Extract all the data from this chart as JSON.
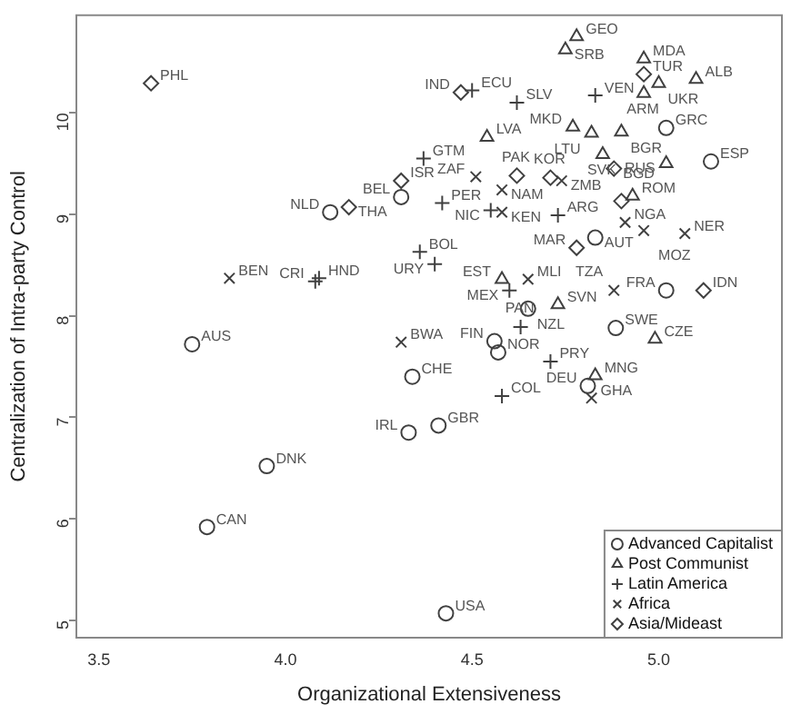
{
  "chart_data": {
    "type": "scatter",
    "xlabel": "Organizational Extensiveness",
    "ylabel": "Centralization of Intra-party Control",
    "xlim": [
      3.44,
      5.33
    ],
    "ylim": [
      4.83,
      10.96
    ],
    "xticks": [
      {
        "value": 3.5,
        "label": "3.5"
      },
      {
        "value": 4,
        "label": "4.0"
      },
      {
        "value": 4.5,
        "label": "4.5"
      },
      {
        "value": 5,
        "label": "5.0"
      }
    ],
    "yticks": [
      5,
      6,
      7,
      8,
      9,
      10
    ],
    "grid": false,
    "legend": "bottom right",
    "series": [
      {
        "name": "Advanced Capitalist",
        "marker": "circle",
        "color": "#404040",
        "x": [
          3.75,
          3.79,
          3.95,
          4.34,
          4.33,
          4.41,
          4.43,
          4.57,
          4.56,
          4.885,
          4.65,
          5.02,
          4.83,
          5.02,
          5.14,
          4.31,
          4.12,
          4.81
        ],
        "values": [
          7.72,
          5.92,
          6.52,
          7.4,
          6.85,
          6.92,
          5.07,
          7.64,
          7.75,
          7.88,
          8.07,
          8.25,
          8.77,
          9.85,
          9.52,
          9.17,
          9.02,
          7.31
        ],
        "value_labels": [
          "AUS",
          "CAN",
          "DNK",
          "CHE",
          "IRL",
          "GBR",
          "USA",
          "NOR",
          "FIN",
          "SWE",
          "NZL",
          "FRA",
          "AUT",
          "GRC",
          "ESP",
          "BEL",
          "NLD",
          "DEU"
        ]
      },
      {
        "name": "Post Communist",
        "marker": "triangle",
        "color": "#404040",
        "x": [
          4.78,
          4.75,
          4.96,
          5.0,
          5.1,
          4.96,
          4.77,
          4.82,
          4.9,
          4.54,
          4.85,
          5.02,
          4.93,
          4.58,
          4.73,
          4.99,
          4.83
        ],
        "values": [
          10.75,
          10.62,
          10.53,
          10.29,
          10.33,
          10.19,
          9.86,
          9.8,
          9.81,
          9.76,
          9.59,
          9.5,
          9.18,
          8.36,
          8.11,
          7.77,
          7.41
        ],
        "value_labels": [
          "GEO",
          "SRB",
          "MDA",
          "UKR",
          "ALB",
          "ARM",
          "MKD",
          "LTU",
          "BGR",
          "LVA",
          "SVK",
          "RUS",
          "ROM",
          "EST",
          "SVN",
          "CZE",
          "MNG"
        ]
      },
      {
        "name": "Latin America",
        "marker": "cross",
        "color": "#404040",
        "x": [
          4.5,
          4.62,
          4.83,
          4.37,
          4.42,
          4.55,
          4.73,
          4.36,
          4.4,
          4.6,
          4.09,
          4.08,
          4.71,
          4.58,
          4.63
        ],
        "values": [
          10.22,
          10.1,
          10.17,
          9.55,
          9.11,
          9.04,
          8.99,
          8.63,
          8.51,
          8.25,
          8.37,
          8.34,
          7.55,
          7.21,
          7.89
        ],
        "value_labels": [
          "ECU",
          "SLV",
          "VEN",
          "GTM",
          "PER",
          "NIC",
          "ARG",
          "BOL",
          "URY",
          "MEX",
          "HND",
          "CRI",
          "PRY",
          "COL",
          "PAN"
        ]
      },
      {
        "name": "Africa",
        "marker": "x",
        "color": "#404040",
        "x": [
          3.85,
          4.31,
          4.51,
          4.58,
          4.74,
          4.58,
          4.88,
          5.07,
          4.91,
          4.96,
          4.82,
          4.65
        ],
        "values": [
          8.37,
          7.74,
          9.37,
          9.24,
          9.33,
          9.02,
          8.25,
          8.81,
          8.92,
          8.84,
          7.19,
          8.36
        ],
        "value_labels": [
          "BEN",
          "BWA",
          "ZAF",
          "NAM",
          "ZMB",
          "KEN",
          "TZA",
          "NER",
          "NGA",
          "MOZ",
          "GHA",
          "MLI"
        ]
      },
      {
        "name": "Asia/Mideast",
        "marker": "diamond",
        "color": "#404040",
        "x": [
          3.64,
          4.47,
          4.31,
          4.17,
          4.62,
          4.71,
          4.88,
          4.78,
          5.12,
          4.96,
          4.9
        ],
        "values": [
          10.29,
          10.2,
          9.33,
          9.07,
          9.38,
          9.36,
          9.45,
          8.67,
          8.25,
          10.38,
          9.13
        ],
        "value_labels": [
          "PHL",
          "IND",
          "ISR",
          "THA",
          "PAK",
          "KOR",
          "BGD",
          "MAR",
          "IDN",
          "TUR",
          null
        ]
      }
    ]
  }
}
